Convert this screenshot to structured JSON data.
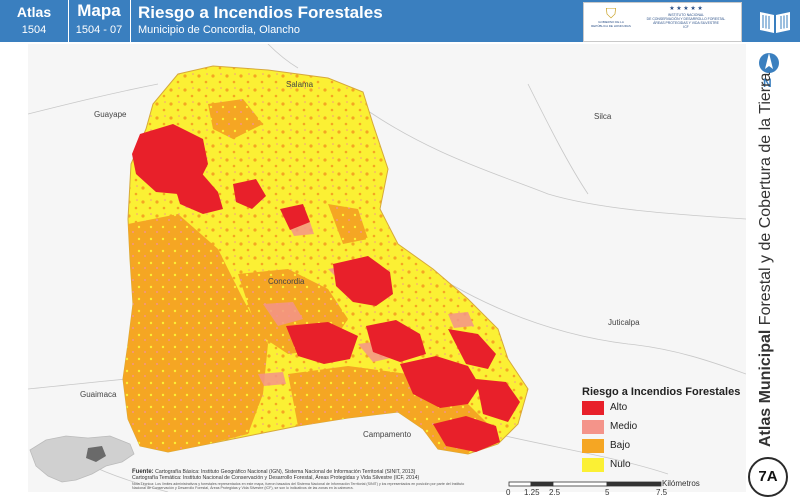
{
  "header": {
    "atlas_label": "Atlas",
    "atlas_number": "1504",
    "mapa_label": "Mapa",
    "mapa_number": "1504 - 07",
    "title": "Riesgo a Incendios Forestales",
    "subtitle": "Municipio de Concordia, Olancho"
  },
  "logos": {
    "gobierno": "GOBIERNO DE LA REPÚBLICA DE HONDURAS",
    "icf_stars": "★ ★ ★ ★ ★",
    "icf_line1": "INSTITUTO NACIONAL",
    "icf_line2": "DE CONSERVACIÓN Y DESARROLLO FORESTAL",
    "icf_line3": "ÁREAS PROTEGIDAS Y VIDA SILVESTRE",
    "icf_abbr": "ICF"
  },
  "side_title": {
    "bold": "Atlas Municipal",
    "rest": " Forestal y de Cobertura de la Tierra"
  },
  "north_label": "N",
  "map_badge": "7A",
  "places": {
    "salama": "Salama",
    "guayape": "Guayape",
    "silca": "Silca",
    "concordia": "Concordia",
    "juticalpa": "Juticalpa",
    "guaimaca": "Guaimaca",
    "campamento": "Campamento"
  },
  "legend": {
    "title": "Riesgo a Incendios Forestales",
    "items": [
      {
        "label": "Alto",
        "color": "#e8202a"
      },
      {
        "label": "Medio",
        "color": "#f4948a"
      },
      {
        "label": "Bajo",
        "color": "#f5a623"
      },
      {
        "label": "Nulo",
        "color": "#fbf034"
      }
    ]
  },
  "sources": {
    "label": "Fuente:",
    "line1": "Cartografía Básica: Instituto Geográfico Nacional (IGN), Sistema Nacional de Información Territorial (SINIT, 2013)",
    "line2": "Cartografía Temática: Instituto Nacional de Conservación y Desarrollo Forestal, Áreas Protegidas y Vida Silvestre (ICF, 2014)",
    "note": "Nota Técnica: Los límites administrativos y forestales representados en este mapa, fueron basados del Sistema Nacional de Información Territorial (SINIT) y los representados en posición por parte del Instituto Nacional de Conservación y Desarrollo Forestal, Áreas Protegidas y Vida Silvestre (ICF), se son lo indicativos de las zonas en la cabecera."
  },
  "scale": {
    "unit": "Kilómetros",
    "ticks": [
      "0",
      "1.25",
      "2.5",
      "5",
      "7.5"
    ]
  },
  "colors": {
    "header_blue": "#3a7fbf",
    "alto": "#e8202a",
    "medio": "#f4948a",
    "bajo": "#f5a623",
    "nulo": "#fbf034"
  }
}
